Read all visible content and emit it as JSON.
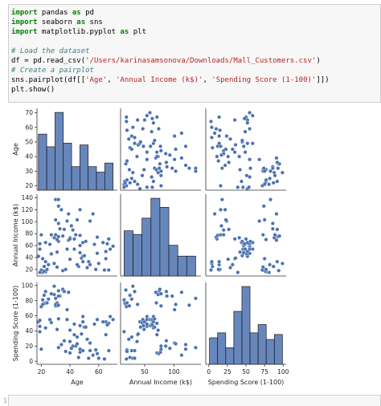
{
  "notebook": {
    "code_lines": [
      "import pandas as pd",
      "import seaborn as sns",
      "import matplotlib.pyplot as plt",
      "# Load the dataset",
      "df = pd.read_csv('/Users/karinasamsonova/Downloads/Mall_Customers.csv')",
      "# Create a pairplot",
      "sns.pairplot(df[['Age', 'Annual Income (k$)', 'Spending Score (1-100)']])",
      "plt.show()"
    ],
    "next_cell_line": 1
  },
  "chart_data": {
    "type": "pairplot",
    "color": "#4c72b0",
    "variables": [
      {
        "label": "Age",
        "lim": [
          17,
          73
        ],
        "yticks": [
          20,
          30,
          40,
          50,
          60,
          70
        ],
        "xticks": [
          20,
          40,
          60
        ],
        "bins": [
          18,
          23.78,
          29.56,
          35.33,
          41.11,
          46.89,
          52.67,
          58.44,
          64.22,
          70
        ],
        "counts": [
          31,
          24,
          43,
          26,
          13,
          25,
          13,
          10,
          15
        ]
      },
      {
        "label": "Annual Income (k$)",
        "lim": [
          9,
          146
        ],
        "yticks": [
          20,
          40,
          60,
          80,
          100,
          120,
          140
        ],
        "xticks": [
          50,
          100
        ],
        "bins": [
          15,
          30.25,
          45.5,
          60.75,
          76,
          91.25,
          106.5,
          121.75,
          137
        ],
        "counts": [
          25,
          23,
          32,
          43,
          38,
          17,
          11,
          11
        ]
      },
      {
        "label": "Spending Score (1-100)",
        "lim": [
          -4,
          104
        ],
        "yticks": [
          0,
          20,
          40,
          60,
          80,
          100
        ],
        "xticks": [
          0,
          25,
          50,
          75,
          100
        ],
        "bins": [
          1,
          11.89,
          22.78,
          33.67,
          44.56,
          55.44,
          66.33,
          77.22,
          88.11,
          99
        ],
        "counts": [
          16,
          19,
          10,
          32,
          47,
          19,
          24,
          15,
          18
        ]
      }
    ],
    "points": [
      [
        21,
        15,
        81
      ],
      [
        23,
        16,
        77
      ],
      [
        22,
        17,
        76
      ],
      [
        20,
        19,
        72
      ],
      [
        35,
        18,
        94
      ],
      [
        24,
        20,
        77
      ],
      [
        31,
        24,
        73
      ],
      [
        22,
        25,
        87
      ],
      [
        25,
        28,
        82
      ],
      [
        29,
        30,
        99
      ],
      [
        23,
        33,
        92
      ],
      [
        21,
        38,
        75
      ],
      [
        19,
        15,
        39
      ],
      [
        64,
        19,
        3
      ],
      [
        67,
        19,
        14
      ],
      [
        58,
        20,
        15
      ],
      [
        37,
        20,
        13
      ],
      [
        52,
        23,
        29
      ],
      [
        46,
        25,
        5
      ],
      [
        54,
        28,
        14
      ],
      [
        45,
        28,
        32
      ],
      [
        60,
        30,
        4
      ],
      [
        53,
        33,
        4
      ],
      [
        49,
        33,
        14
      ],
      [
        40,
        37,
        26
      ],
      [
        65,
        38,
        35
      ],
      [
        48,
        39,
        36
      ],
      [
        18,
        42,
        52
      ],
      [
        49,
        42,
        52
      ],
      [
        50,
        43,
        45
      ],
      [
        27,
        46,
        51
      ],
      [
        59,
        47,
        55
      ],
      [
        47,
        48,
        47
      ],
      [
        31,
        49,
        42
      ],
      [
        65,
        50,
        52
      ],
      [
        19,
        54,
        46
      ],
      [
        68,
        54,
        59
      ],
      [
        38,
        54,
        55
      ],
      [
        70,
        59,
        55
      ],
      [
        47,
        60,
        47
      ],
      [
        26,
        62,
        55
      ],
      [
        57,
        62,
        49
      ],
      [
        19,
        63,
        54
      ],
      [
        63,
        65,
        52
      ],
      [
        49,
        65,
        59
      ],
      [
        32,
        67,
        56
      ],
      [
        67,
        71,
        50
      ],
      [
        40,
        73,
        41
      ],
      [
        23,
        65,
        44
      ],
      [
        51,
        67,
        45
      ],
      [
        43,
        54,
        49
      ],
      [
        66,
        63,
        48
      ],
      [
        39,
        69,
        91
      ],
      [
        31,
        70,
        77
      ],
      [
        29,
        73,
        88
      ],
      [
        32,
        75,
        93
      ],
      [
        35,
        76,
        95
      ],
      [
        27,
        78,
        89
      ],
      [
        30,
        78,
        73
      ],
      [
        36,
        87,
        92
      ],
      [
        33,
        88,
        86
      ],
      [
        32,
        97,
        86
      ],
      [
        38,
        101,
        68
      ],
      [
        30,
        103,
        75
      ],
      [
        39,
        113,
        91
      ],
      [
        32,
        126,
        74
      ],
      [
        30,
        137,
        83
      ],
      [
        40,
        71,
        11
      ],
      [
        43,
        71,
        35
      ],
      [
        59,
        74,
        10
      ],
      [
        47,
        77,
        12
      ],
      [
        20,
        78,
        16
      ],
      [
        44,
        78,
        20
      ],
      [
        42,
        86,
        20
      ],
      [
        36,
        87,
        27
      ],
      [
        41,
        93,
        17
      ],
      [
        54,
        101,
        24
      ],
      [
        45,
        103,
        23
      ],
      [
        56,
        113,
        8
      ],
      [
        34,
        120,
        22
      ],
      [
        47,
        120,
        16
      ],
      [
        32,
        137,
        18
      ]
    ]
  }
}
